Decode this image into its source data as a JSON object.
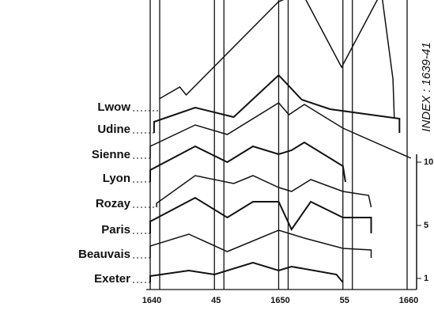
{
  "chart_data": {
    "type": "line",
    "axis_title": "INDEX : 1639-41",
    "xticks": [
      1640,
      {
        "value": 1645,
        "label": "45"
      },
      1650,
      {
        "value": 1655,
        "label": "55"
      },
      1660
    ],
    "right_labels": [
      "10",
      "5",
      "1"
    ],
    "series": [
      {
        "name": "Lwow",
        "x": [
          1640.7,
          1642.3,
          1642.8,
          1650,
          1651.8,
          1654.9,
          1658,
          1658.9,
          1659
        ],
        "values": [
          15,
          30,
          20,
          138,
          150,
          55,
          150,
          40,
          -10
        ]
      },
      {
        "name": "Udine",
        "x": [
          1640.3,
          1640.3,
          1643.5,
          1646.5,
          1650,
          1651.8,
          1654,
          1659.4,
          1659.4
        ],
        "values": [
          0,
          14,
          32,
          20,
          73,
          42,
          30,
          18,
          0
        ]
      },
      {
        "name": "Sienne",
        "x": [
          1640,
          1640,
          1643.5,
          1646,
          1650,
          1650.8,
          1652,
          1655,
          1660.3,
          1660.3
        ],
        "values": [
          0,
          15,
          42,
          30,
          70,
          55,
          68,
          38,
          0,
          0
        ]
      },
      {
        "name": "Lyon",
        "x": [
          1640,
          1640,
          1643.5,
          1646,
          1648,
          1650,
          1651,
          1652,
          1655,
          1655.2
        ],
        "values": [
          0,
          15,
          45,
          25,
          45,
          35,
          40,
          50,
          20,
          0
        ]
      },
      {
        "name": "Rozay",
        "x": [
          1640.5,
          1640.5,
          1643.5,
          1646.5,
          1648,
          1650,
          1651,
          1652.5,
          1655,
          1657,
          1657.2
        ],
        "values": [
          0,
          5,
          40,
          30,
          40,
          25,
          20,
          35,
          20,
          15,
          0
        ]
      },
      {
        "name": "Paris",
        "x": [
          1640,
          1640,
          1643.5,
          1646,
          1648,
          1650,
          1651,
          1652.5,
          1655,
          1657.2,
          1657.2
        ],
        "values": [
          0,
          15,
          45,
          20,
          40,
          40,
          5,
          40,
          20,
          20,
          0
        ]
      },
      {
        "name": "Beauvais",
        "x": [
          1640,
          1640,
          1643,
          1646,
          1650,
          1652,
          1655,
          1657.2,
          1657.2
        ],
        "values": [
          0,
          15,
          30,
          8,
          35,
          25,
          12,
          10,
          0
        ]
      },
      {
        "name": "Exeter",
        "x": [
          1640,
          1640,
          1643,
          1645,
          1648,
          1650,
          1651,
          1654.5,
          1655,
          1655
        ],
        "values": [
          0,
          8,
          15,
          10,
          25,
          15,
          20,
          10,
          0,
          0
        ]
      }
    ]
  }
}
